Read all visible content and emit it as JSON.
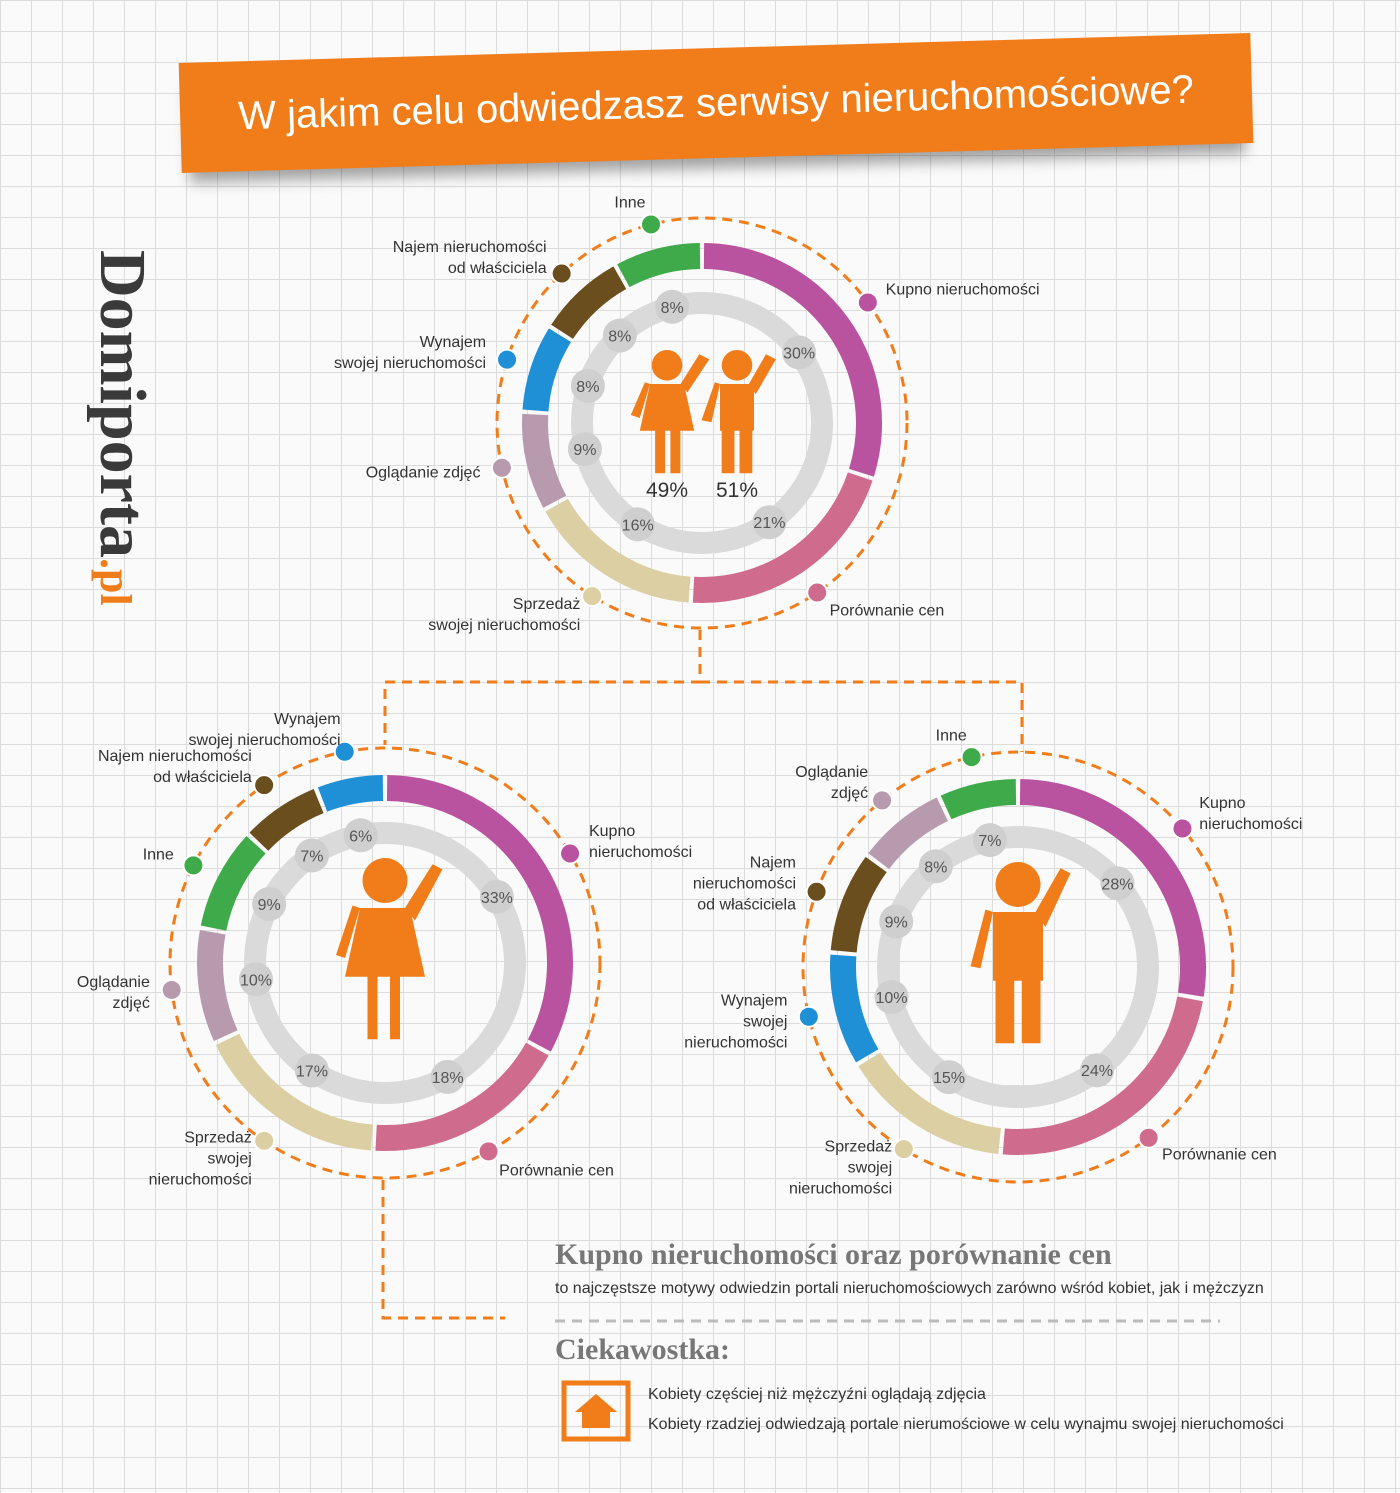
{
  "title": "W jakim celu odwiedzasz serwisy nieruchomościowe?",
  "brand": {
    "name": "Domiporta",
    "suffix": ".pl"
  },
  "chart_data": [
    {
      "type": "donut",
      "categories": [
        "Kupno nieruchomości",
        "Porównanie cen",
        "Sprzedaż\nswojej nieruchomości",
        "Oglądanie zdjęć",
        "Wynajem\nswojej nieruchomości",
        "Najem nieruchomości\nod właściciela",
        "Inne"
      ],
      "values": [
        30,
        21,
        16,
        9,
        8,
        8,
        8
      ],
      "value_labels": [
        "30%",
        "21%",
        "16%",
        "9%",
        "8%",
        "8%",
        "8%"
      ],
      "colors": [
        "#b9529f",
        "#cf6b8c",
        "#dccfa3",
        "#b89aaf",
        "#1f8fd6",
        "#6b4e1e",
        "#3faa4a"
      ],
      "split": {
        "values": [
          49,
          51
        ],
        "value_labels": [
          "49%",
          "51%"
        ]
      }
    },
    {
      "type": "donut",
      "categories": [
        "Kupno\nnieruchomości",
        "Porównanie cen",
        "Sprzedaż\nswojej\nnieruchomości",
        "Oglądanie\nzdjęć",
        "Inne",
        "Najem nieruchomości\nod właściciela",
        "Wynajem\nswojej nieruchomości"
      ],
      "values": [
        33,
        18,
        17,
        10,
        9,
        7,
        6
      ],
      "value_labels": [
        "33%",
        "18%",
        "17%",
        "10%",
        "9%",
        "7%",
        "6%"
      ],
      "colors": [
        "#b9529f",
        "#cf6b8c",
        "#dccfa3",
        "#b89aaf",
        "#3faa4a",
        "#6b4e1e",
        "#1f8fd6"
      ]
    },
    {
      "type": "donut",
      "categories": [
        "Kupno\nnieruchomości",
        "Porównanie cen",
        "Sprzedaż\nswojej\nnieruchomości",
        "Wynajem\nswojej\nnieruchomości",
        "Najem\nnieruchomości\nod właściciela",
        "Oglądanie\nzdjęć",
        "Inne"
      ],
      "values": [
        28,
        24,
        15,
        10,
        9,
        8,
        7
      ],
      "value_labels": [
        "28%",
        "24%",
        "15%",
        "10%",
        "9%",
        "8%",
        "7%"
      ],
      "colors": [
        "#b9529f",
        "#cf6b8c",
        "#dccfa3",
        "#1f8fd6",
        "#6b4e1e",
        "#b89aaf",
        "#3faa4a"
      ]
    }
  ],
  "summary": {
    "heading": "Kupno nieruchomości oraz porównanie cen",
    "text": "to najczęstsze motywy odwiedzin portali nieruchomościowych zarówno wśród kobiet, jak i mężczyzn",
    "fact_title": "Ciekawostka:",
    "facts": [
      "Kobiety częściej niż mężczyźni oglądają zdjęcia",
      "Kobiety rzadziej odwiedzają portale nierumościowe w celu wynajmu swojej nieruchomości"
    ]
  }
}
